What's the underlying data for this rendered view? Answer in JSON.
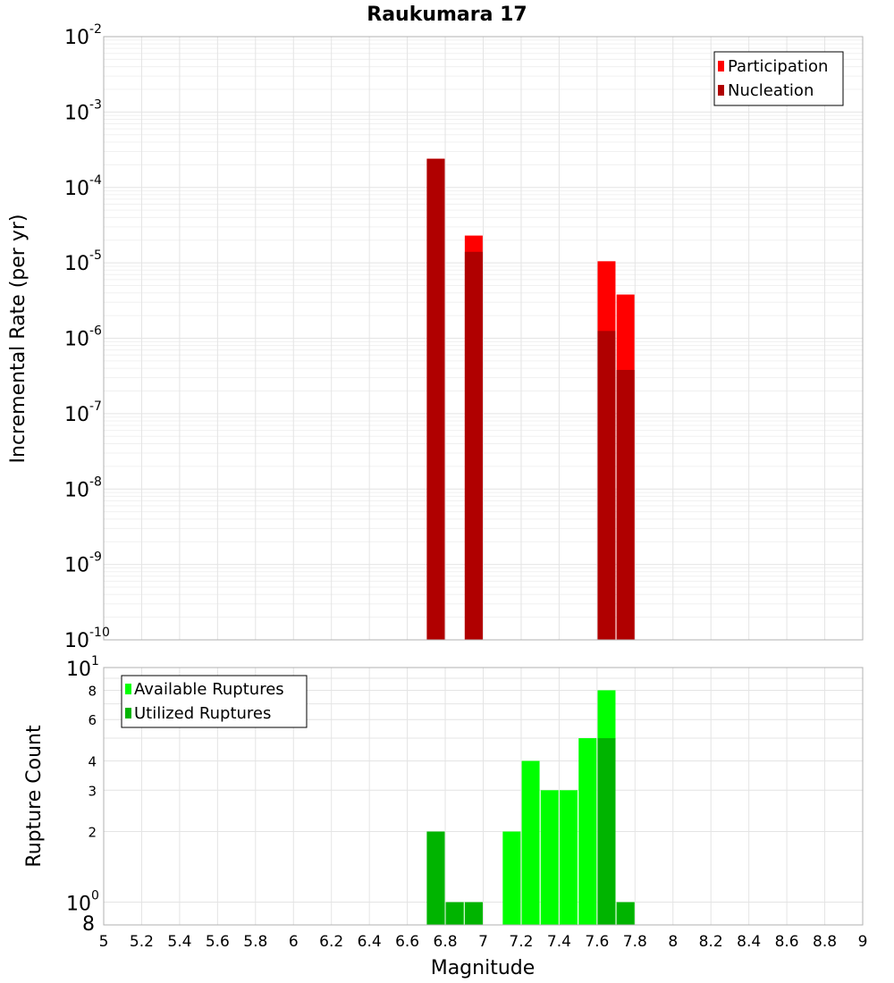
{
  "chart_data": [
    {
      "type": "bar",
      "title": "Raukumara 17",
      "xlabel": "",
      "ylabel": "Incremental Rate (per yr)",
      "yscale": "log",
      "xlim": [
        5,
        9
      ],
      "ylim": [
        1e-10,
        0.01
      ],
      "y_ticks": [
        {
          "base": "10",
          "exp": "-2"
        },
        {
          "base": "10",
          "exp": "-3"
        },
        {
          "base": "10",
          "exp": "-4"
        },
        {
          "base": "10",
          "exp": "-5"
        },
        {
          "base": "10",
          "exp": "-6"
        },
        {
          "base": "10",
          "exp": "-7"
        },
        {
          "base": "10",
          "exp": "-8"
        },
        {
          "base": "10",
          "exp": "-9"
        },
        {
          "base": "10",
          "exp": "-10"
        }
      ],
      "legend": {
        "placement": "top-right"
      },
      "series": [
        {
          "name": "Participation",
          "color": "#ff0000",
          "x": [
            6.75,
            6.95,
            7.65,
            7.75
          ],
          "values": [
            0.00024,
            2.3e-05,
            1.05e-05,
            3.8e-06
          ]
        },
        {
          "name": "Nucleation",
          "color": "#b00000",
          "x": [
            6.75,
            6.95,
            7.65,
            7.75
          ],
          "values": [
            0.00024,
            1.4e-05,
            1.25e-06,
            3.8e-07
          ]
        }
      ],
      "grid": true
    },
    {
      "type": "bar",
      "title": "",
      "xlabel": "Magnitude",
      "ylabel": "Rupture Count",
      "yscale": "log",
      "xlim": [
        5,
        9
      ],
      "ylim": [
        0.8,
        10
      ],
      "x_ticks": [
        "5",
        "5.2",
        "5.4",
        "5.6",
        "5.8",
        "6",
        "6.2",
        "6.4",
        "6.6",
        "6.8",
        "7",
        "7.2",
        "7.4",
        "7.6",
        "7.8",
        "8",
        "8.2",
        "8.4",
        "8.6",
        "8.8",
        "9"
      ],
      "y_major_ticks": [
        {
          "base": "10",
          "exp": "1"
        },
        {
          "base": "10",
          "exp": "0"
        }
      ],
      "y_minor_ticks": [
        "8",
        "6",
        "4",
        "3",
        "2",
        "8"
      ],
      "legend": {
        "placement": "top-left"
      },
      "series": [
        {
          "name": "Available Ruptures",
          "color": "#00ff00",
          "x": [
            6.75,
            6.85,
            6.95,
            7.15,
            7.25,
            7.35,
            7.45,
            7.55,
            7.65,
            7.75
          ],
          "values": [
            2,
            1,
            1,
            2,
            4,
            3,
            3,
            5,
            8,
            1
          ]
        },
        {
          "name": "Utilized Ruptures",
          "color": "#00b400",
          "x": [
            6.75,
            6.85,
            6.95,
            7.15,
            7.25,
            7.35,
            7.45,
            7.55,
            7.65,
            7.75
          ],
          "values": [
            2,
            1,
            1,
            0,
            0,
            0,
            0,
            0,
            5,
            1
          ]
        }
      ],
      "grid": true
    }
  ]
}
